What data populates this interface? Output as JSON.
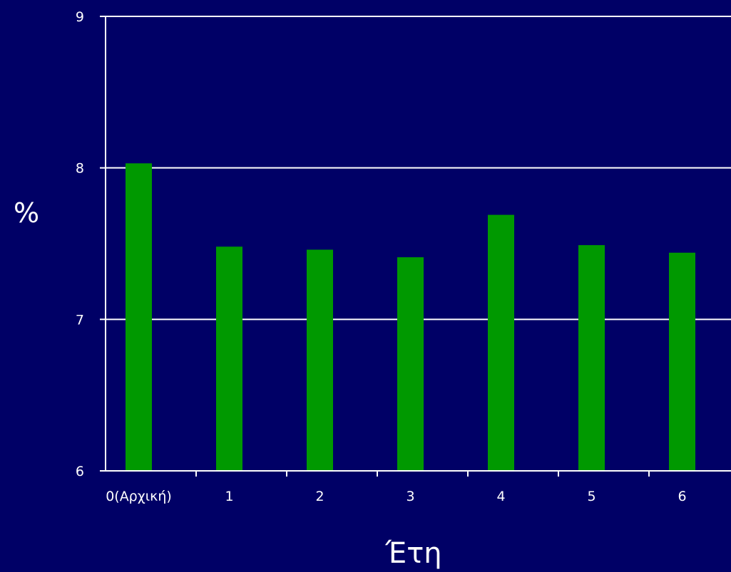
{
  "chart_data": {
    "type": "bar",
    "categories": [
      "0(Αρχική)",
      "1",
      "2",
      "3",
      "4",
      "5",
      "6"
    ],
    "values": [
      8.03,
      7.48,
      7.46,
      7.41,
      7.69,
      7.49,
      7.44
    ],
    "xlabel": "Έτη",
    "ylabel": "%",
    "ylim": [
      6,
      9
    ],
    "yticks": [
      "6",
      "7",
      "8",
      "9"
    ],
    "grid": true,
    "legend": "none"
  },
  "colors": {
    "background": "#000066",
    "bar": "#009900",
    "axis": "#ffffff",
    "text": "#ffffff"
  }
}
